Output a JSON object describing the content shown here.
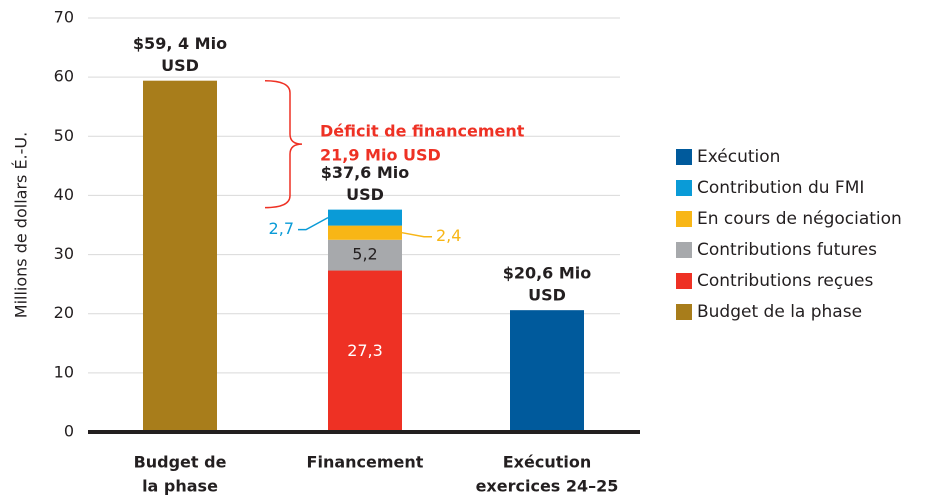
{
  "chart_data": {
    "type": "stacked_bar",
    "y_axis_label": "Millions de dollars É.-U.",
    "categories": [
      [
        "Budget de",
        "la phase"
      ],
      [
        "Financement"
      ],
      [
        "Exécution",
        "exercices 24–25"
      ]
    ],
    "series": [
      {
        "name": "Budget de la phase",
        "color": "#a87d1b",
        "values": [
          59.4,
          null,
          null
        ]
      },
      {
        "name": "Contributions reçues",
        "color": "#ee3124",
        "values": [
          null,
          27.3,
          null
        ],
        "value_labels": [
          null,
          "27,3",
          null
        ]
      },
      {
        "name": "Contributions futures",
        "color": "#a7a9ac",
        "values": [
          null,
          5.2,
          null
        ],
        "value_labels": [
          null,
          "5,2",
          null
        ]
      },
      {
        "name": "En cours de négociation",
        "color": "#f8b616",
        "values": [
          null,
          2.4,
          null
        ],
        "value_labels": [
          null,
          "2,4",
          null
        ]
      },
      {
        "name": "Contribution du FMI",
        "color": "#0a9bd7",
        "values": [
          null,
          2.7,
          null
        ],
        "value_labels": [
          null,
          "2,7",
          null
        ]
      },
      {
        "name": "Exécution",
        "color": "#005a9c",
        "values": [
          null,
          null,
          20.6
        ]
      }
    ],
    "total_labels": [
      [
        "$59, 4 Mio",
        "USD"
      ],
      [
        "$37,6 Mio",
        "USD"
      ],
      [
        "$20,6 Mio",
        "USD"
      ]
    ],
    "annotation": {
      "lines": [
        "Déficit de financement",
        "21,9 Mio USD"
      ],
      "color": "#ee3124"
    },
    "ylim": [
      0,
      70
    ],
    "yticks": [
      0,
      10,
      20,
      30,
      40,
      50,
      60,
      70
    ],
    "grid": true,
    "legend": "right"
  }
}
